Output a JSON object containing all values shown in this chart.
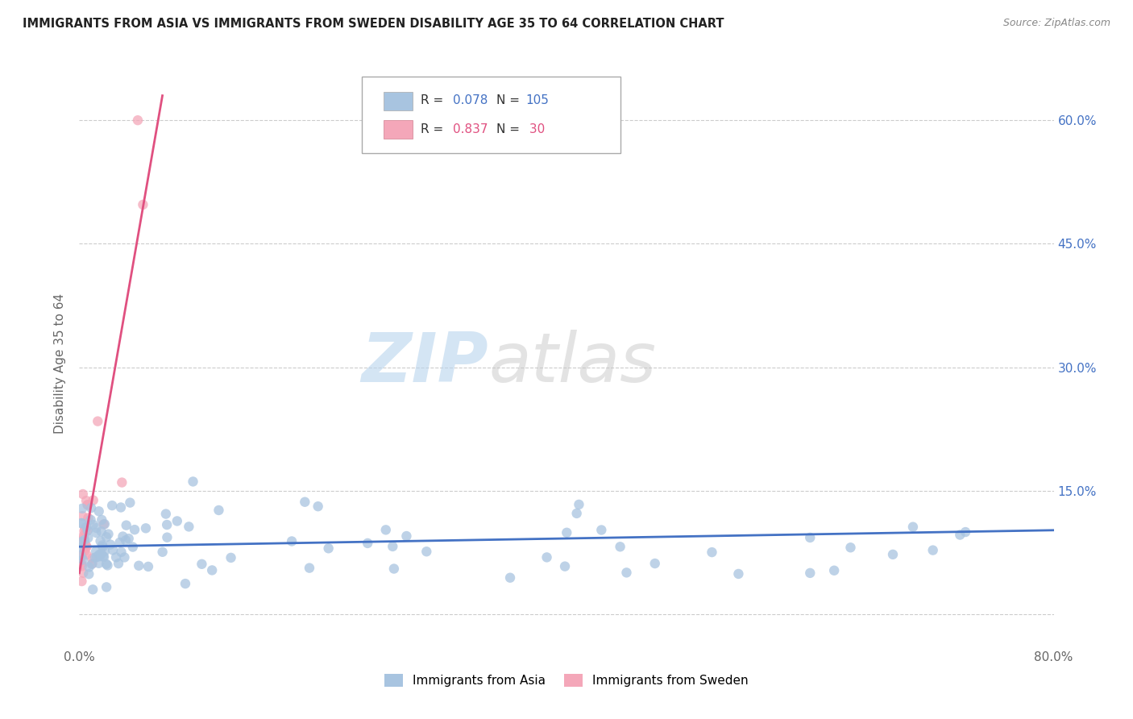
{
  "title": "IMMIGRANTS FROM ASIA VS IMMIGRANTS FROM SWEDEN DISABILITY AGE 35 TO 64 CORRELATION CHART",
  "source": "Source: ZipAtlas.com",
  "ylabel": "Disability Age 35 to 64",
  "xmin": 0.0,
  "xmax": 0.8,
  "ymin": -0.04,
  "ymax": 0.65,
  "asia_R": 0.078,
  "asia_N": 105,
  "sweden_R": 0.837,
  "sweden_N": 30,
  "asia_color": "#a8c4e0",
  "sweden_color": "#f4a7b9",
  "asia_line_color": "#4472c4",
  "sweden_line_color": "#e05080",
  "watermark_zip": "ZIP",
  "watermark_atlas": "atlas",
  "grid_color": "#cccccc",
  "ytick_color": "#4472c4",
  "title_color": "#222222",
  "source_color": "#888888",
  "ylabel_color": "#666666"
}
